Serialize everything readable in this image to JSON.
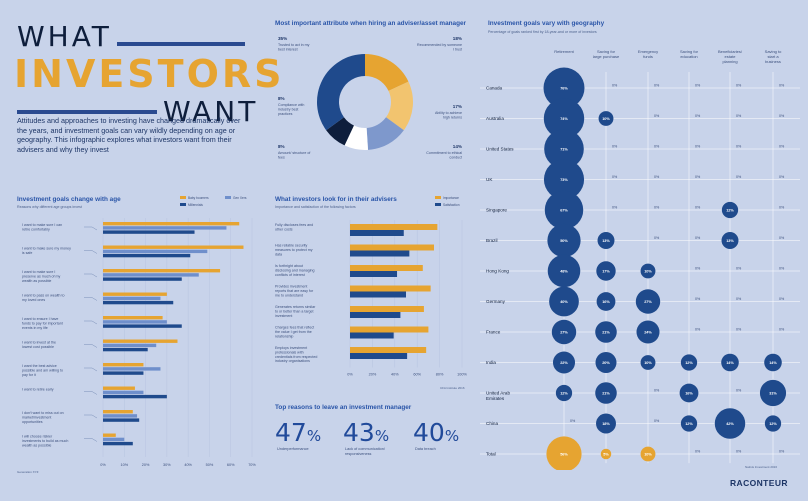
{
  "header": {
    "title_line1": "WHAT",
    "title_line2": "INVESTORS",
    "title_line3": "WANT",
    "intro": "Attitudes and approaches to investing have changed dramatically over the years, and investment goals can vary wildly depending on age or geography. This infographic explores what investors want from their advisers and why they invest"
  },
  "colors": {
    "gold": "#e6a431",
    "light_blue": "#6f8fcb",
    "navy": "#1f4a8c",
    "dark": "#0e1e3c",
    "background": "#c8d3ea"
  },
  "age_chart": {
    "title": "Investment goals change with age",
    "subtitle": "Reasons why different age groups invest",
    "legend": [
      "Baby boomers",
      "Gen Xers",
      "Millennials"
    ],
    "ticks": [
      "0%",
      "10%",
      "20%",
      "30%",
      "40%",
      "50%",
      "60%",
      "70%"
    ],
    "footnote": "Generation XYZ",
    "chart_data": {
      "type": "bar",
      "orientation": "horizontal",
      "categories": [
        "I want to make sure I can retire comfortably",
        "I want to make sure my money is safe",
        "I want to make sure I preserve as much of my wealth as possible",
        "I want to pass on wealth to my loved ones",
        "I want to ensure I have funds to pay for important events in my life",
        "I want to invest at the lowest cost possible",
        "I want the best advice possible and am willing to pay for it",
        "I want to retire early",
        "I don't want to miss out on market/investment opportunities",
        "I will choose riskier investments to build as much wealth as possible"
      ],
      "series": [
        {
          "name": "Baby boomers",
          "values": [
            64,
            66,
            55,
            30,
            28,
            35,
            19,
            15,
            14,
            6
          ]
        },
        {
          "name": "Gen Xers",
          "values": [
            58,
            49,
            45,
            27,
            30,
            25,
            27,
            19,
            16,
            10
          ]
        },
        {
          "name": "Millennials",
          "values": [
            43,
            41,
            37,
            33,
            37,
            21,
            19,
            30,
            17,
            14
          ]
        }
      ],
      "xlim": [
        0,
        70
      ]
    }
  },
  "donut": {
    "title": "Most important attribute when hiring an adviser/asset manager",
    "chart_data": {
      "type": "pie",
      "labels": [
        "Recommended by someone I trust",
        "Ability to achieve high returns",
        "Commitment to ethical conduct",
        "Amount/structure of fees",
        "Compliance with industry best practices",
        "Trusted to act in my best interest"
      ],
      "values": [
        18,
        17,
        14,
        8,
        8,
        35
      ]
    },
    "labels": [
      {
        "pct": "35%",
        "text": "Trusted to act in my best interest"
      },
      {
        "pct": "18%",
        "text": "Recommended by someone I trust"
      },
      {
        "pct": "8%",
        "text": "Compliance with industry best practices"
      },
      {
        "pct": "17%",
        "text": "Ability to achieve high returns"
      },
      {
        "pct": "8%",
        "text": "Amount/ structure of fees"
      },
      {
        "pct": "14%",
        "text": "Commitment to ethical conduct"
      }
    ]
  },
  "advisers_chart": {
    "title": "What investors look for in their advisers",
    "subtitle": "Importance and satisfaction of the following factors",
    "legend": [
      "Importance",
      "Satisfaction"
    ],
    "ticks": [
      "0%",
      "20%",
      "40%",
      "60%",
      "80%",
      "100%"
    ],
    "footnote": "CFA Institute 2016",
    "chart_data": {
      "type": "bar",
      "orientation": "horizontal",
      "categories": [
        "Fully discloses fees and other costs",
        "Has reliable security measures to protect my data",
        "Is forthright about disclosing and managing conflicts of interest",
        "Provides investment reports that are easy for me to understand",
        "Generates returns similar to or better than a target investment",
        "Charges fees that reflect the value I get from the relationship",
        "Employs investment professionals with credentials from respected industry organisations"
      ],
      "series": [
        {
          "name": "Importance",
          "values": [
            78,
            75,
            65,
            72,
            66,
            70,
            68
          ]
        },
        {
          "name": "Satisfaction",
          "values": [
            48,
            53,
            42,
            50,
            45,
            39,
            51
          ]
        }
      ],
      "xlim": [
        0,
        100
      ]
    }
  },
  "stats": {
    "title": "Top reasons to leave an investment manager",
    "items": [
      {
        "value": "47",
        "unit": "%",
        "label": "Underperformance"
      },
      {
        "value": "43",
        "unit": "%",
        "label": "Lack of communication/ responsiveness"
      },
      {
        "value": "40",
        "unit": "%",
        "label": "Data breach"
      }
    ]
  },
  "geo_chart": {
    "title": "Investment goals vary with geography",
    "subtitle": "Percentage of goals ranked first by 18-year-and or more of investors",
    "columns": [
      "Retirement",
      "Saving for large purchase",
      "Emergency funds",
      "Saving for education",
      "Beneficiaries/ estate planning",
      "Saving to start a business"
    ],
    "footnote": "Natixis Investment 2016",
    "chart_data": {
      "type": "heatmap",
      "rows": [
        "Canada",
        "Australia",
        "United States",
        "UK",
        "Singapore",
        "Brazil",
        "Hong Kong",
        "Germany",
        "France",
        "India",
        "United Arab Emirates",
        "China",
        "Total"
      ],
      "values": [
        [
          76,
          0,
          0,
          0,
          0,
          0
        ],
        [
          74,
          10,
          0,
          0,
          0,
          0
        ],
        [
          71,
          0,
          0,
          0,
          0,
          0
        ],
        [
          73,
          0,
          0,
          0,
          0,
          0
        ],
        [
          67,
          0,
          0,
          0,
          12,
          0
        ],
        [
          50,
          13,
          0,
          0,
          13,
          0
        ],
        [
          48,
          17,
          10,
          0,
          0,
          0
        ],
        [
          40,
          16,
          27,
          0,
          0,
          0
        ],
        [
          27,
          21,
          24,
          0,
          0,
          0
        ],
        [
          22,
          20,
          10,
          12,
          14,
          14
        ],
        [
          12,
          21,
          0,
          16,
          0,
          31
        ],
        [
          0,
          18,
          0,
          12,
          42,
          12
        ],
        [
          56,
          5,
          10,
          0,
          0,
          0
        ]
      ],
      "value_labels": [
        [
          "76%",
          "0%",
          "0%",
          "0%",
          "0%",
          "0%"
        ],
        [
          "74%",
          "10%",
          "0%",
          "0%",
          "0%",
          "0%"
        ],
        [
          "71%",
          "0%",
          "0%",
          "0%",
          "0%",
          "0%"
        ],
        [
          "73%",
          "0%",
          "0%",
          "0%",
          "0%",
          "0%"
        ],
        [
          "67%",
          "0%",
          "0%",
          "0%",
          "12%",
          "0%"
        ],
        [
          "50%",
          "13%",
          "0%",
          "0%",
          "13%",
          "0%"
        ],
        [
          "48%",
          "17%",
          "10%",
          "0%",
          "0%",
          "0%"
        ],
        [
          "40%",
          "16%",
          "27%",
          "0%",
          "0%",
          "0%"
        ],
        [
          "27%",
          "21%",
          "24%",
          "0%",
          "0%",
          "0%"
        ],
        [
          "22%",
          "20%",
          "10%",
          "12%",
          "14%",
          "14%"
        ],
        [
          "12%",
          "21%",
          "0%",
          "16%",
          "0%",
          "31%"
        ],
        [
          "0%",
          "18%",
          "0%",
          "12%",
          "42%",
          "12%"
        ],
        [
          "56%",
          "5%",
          "10%",
          "0%",
          "0%",
          "0%"
        ]
      ]
    }
  },
  "brand": {
    "logo": "RACONTEUR"
  }
}
